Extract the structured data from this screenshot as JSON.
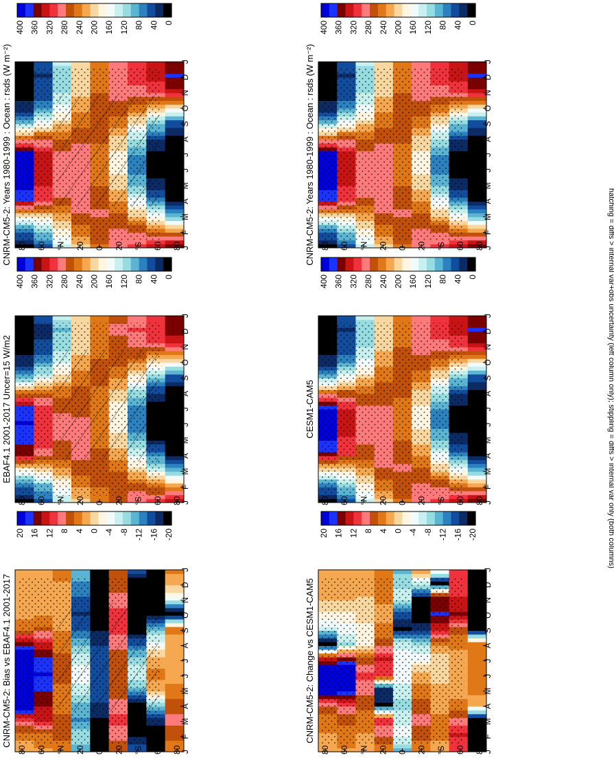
{
  "figure": {
    "footnote": "hatching = diffs > internal var+obs uncertainty (left column only); stippling = diffs > internal var only (both columns)",
    "months": [
      "J",
      "F",
      "M",
      "A",
      "M",
      "J",
      "J",
      "A",
      "S",
      "O",
      "N",
      "D",
      "J"
    ],
    "lat_labels": [
      "80",
      "60",
      "°N",
      "20",
      "0",
      "20",
      "°S",
      "60",
      "80"
    ]
  },
  "colorbars": {
    "absolute": {
      "ticks": [
        "400",
        "360",
        "320",
        "280",
        "240",
        "200",
        "160",
        "120",
        "80",
        "40",
        "0"
      ],
      "colors": [
        "#0000d8",
        "#1a33ff",
        "#7a0000",
        "#c81414",
        "#f0323c",
        "#ff7a7a",
        "#c0500a",
        "#e07818",
        "#f5a850",
        "#f8d8a0",
        "#fff5e0",
        "#f2fbfb",
        "#c8f0ee",
        "#96dce0",
        "#5ab4d2",
        "#2c82be",
        "#124c9c",
        "#0c2a64",
        "#000000"
      ]
    },
    "difference": {
      "ticks": [
        "20",
        "16",
        "12",
        "8",
        "4",
        "0",
        "-4",
        "-8",
        "-12",
        "-16",
        "-20"
      ],
      "colors": [
        "#0000d8",
        "#1a33ff",
        "#7a0000",
        "#c81414",
        "#f0323c",
        "#ff7a7a",
        "#c0500a",
        "#e07818",
        "#f5a850",
        "#f8d8a0",
        "#fff5e0",
        "#f2fbfb",
        "#c8f0ee",
        "#96dce0",
        "#5ab4d2",
        "#2c82be",
        "#124c9c",
        "#0c2a64",
        "#000000"
      ]
    }
  },
  "panels": [
    {
      "id": "row1-left",
      "title": "CNRM-CM5-2: Years 1980-1999 : Ocean : rsds (W m⁻²)",
      "kind": "absolute",
      "hatch": true
    },
    {
      "id": "row1-right",
      "title": "CNRM-CM5-2: Years 1980-1999 : Ocean : rsds (W m⁻²)",
      "kind": "absolute",
      "hatch": false
    },
    {
      "id": "row2-left",
      "title": "EBAF4.1 2001-2017 Uncer=15 W/m2",
      "kind": "absolute",
      "hatch": true
    },
    {
      "id": "row2-right",
      "title": "CESM1-CAM5",
      "kind": "absolute",
      "hatch": false
    },
    {
      "id": "row3-left",
      "title": "CNRM-CM5-2: Bias vs EBAF4.1 2001-2017",
      "kind": "difference",
      "hatch": true
    },
    {
      "id": "row3-right",
      "title": "CNRM-CM5-2: Change vs CESM1-CAM5",
      "kind": "difference",
      "hatch": false
    }
  ],
  "chart_data": [
    {
      "type": "heatmap",
      "title": "CNRM-CM5-2: Years 1980-1999 : Ocean : rsds (W m⁻²)",
      "x": [
        "J",
        "F",
        "M",
        "A",
        "M",
        "J",
        "J",
        "A",
        "S",
        "O",
        "N",
        "D",
        "J"
      ],
      "y": [
        "80N",
        "60N",
        "40N",
        "20N",
        "0",
        "20S",
        "40S",
        "60S",
        "80S"
      ],
      "zlim": [
        0,
        400
      ],
      "values": [
        [
          20,
          70,
          190,
          360,
          390,
          400,
          380,
          250,
          90,
          25,
          10,
          10,
          20
        ],
        [
          60,
          110,
          210,
          300,
          320,
          330,
          320,
          260,
          150,
          75,
          50,
          40,
          60
        ],
        [
          140,
          180,
          230,
          270,
          285,
          290,
          280,
          250,
          200,
          150,
          120,
          110,
          140
        ],
        [
          210,
          240,
          270,
          290,
          290,
          285,
          280,
          270,
          245,
          220,
          205,
          200,
          210
        ],
        [
          250,
          265,
          275,
          270,
          250,
          240,
          245,
          260,
          270,
          265,
          250,
          245,
          250
        ],
        [
          280,
          275,
          260,
          230,
          200,
          180,
          185,
          210,
          245,
          270,
          280,
          285,
          280
        ],
        [
          300,
          270,
          210,
          150,
          100,
          75,
          85,
          130,
          190,
          250,
          290,
          305,
          300
        ],
        [
          320,
          250,
          150,
          70,
          25,
          10,
          15,
          50,
          120,
          220,
          300,
          330,
          320
        ],
        [
          350,
          230,
          90,
          20,
          0,
          0,
          0,
          10,
          60,
          200,
          330,
          360,
          350
        ]
      ]
    },
    {
      "type": "heatmap",
      "title": "CNRM-CM5-2: Years 1980-1999 : Ocean : rsds (W m⁻²)",
      "x": [
        "J",
        "F",
        "M",
        "A",
        "M",
        "J",
        "J",
        "A",
        "S",
        "O",
        "N",
        "D",
        "J"
      ],
      "y": [
        "80N",
        "60N",
        "40N",
        "20N",
        "0",
        "20S",
        "40S",
        "60S",
        "80S"
      ],
      "zlim": [
        0,
        400
      ],
      "values": [
        [
          20,
          70,
          190,
          360,
          390,
          400,
          380,
          250,
          90,
          25,
          10,
          10,
          20
        ],
        [
          60,
          110,
          210,
          300,
          320,
          330,
          320,
          260,
          150,
          75,
          50,
          40,
          60
        ],
        [
          140,
          180,
          230,
          270,
          285,
          290,
          280,
          250,
          200,
          150,
          120,
          110,
          140
        ],
        [
          210,
          240,
          270,
          290,
          290,
          285,
          280,
          270,
          245,
          220,
          205,
          200,
          210
        ],
        [
          250,
          265,
          275,
          270,
          250,
          240,
          245,
          260,
          270,
          265,
          250,
          245,
          250
        ],
        [
          280,
          275,
          260,
          230,
          200,
          180,
          185,
          210,
          245,
          270,
          280,
          285,
          280
        ],
        [
          300,
          270,
          210,
          150,
          100,
          75,
          85,
          130,
          190,
          250,
          290,
          305,
          300
        ],
        [
          320,
          250,
          150,
          70,
          25,
          10,
          15,
          50,
          120,
          220,
          300,
          330,
          320
        ],
        [
          350,
          230,
          90,
          20,
          0,
          0,
          0,
          10,
          60,
          200,
          330,
          360,
          350
        ]
      ]
    },
    {
      "type": "heatmap",
      "title": "EBAF4.1 2001-2017 Uncer=15 W/m2",
      "x": [
        "J",
        "F",
        "M",
        "A",
        "M",
        "J",
        "J",
        "A",
        "S",
        "O",
        "N",
        "D",
        "J"
      ],
      "y": [
        "80N",
        "60N",
        "40N",
        "20N",
        "0",
        "20S",
        "40S",
        "60S",
        "80S"
      ],
      "zlim": [
        0,
        400
      ],
      "values": [
        [
          20,
          65,
          180,
          340,
          370,
          380,
          360,
          240,
          85,
          25,
          10,
          10,
          20
        ],
        [
          55,
          105,
          200,
          285,
          305,
          315,
          305,
          250,
          145,
          70,
          45,
          35,
          55
        ],
        [
          135,
          175,
          225,
          265,
          275,
          280,
          270,
          245,
          195,
          145,
          115,
          105,
          135
        ],
        [
          205,
          235,
          265,
          280,
          280,
          275,
          270,
          260,
          240,
          215,
          200,
          195,
          205
        ],
        [
          240,
          255,
          265,
          260,
          245,
          235,
          240,
          250,
          260,
          255,
          245,
          240,
          240
        ],
        [
          270,
          265,
          250,
          225,
          195,
          175,
          180,
          205,
          240,
          260,
          270,
          275,
          270
        ],
        [
          290,
          260,
          200,
          145,
          95,
          70,
          80,
          125,
          185,
          245,
          280,
          295,
          290
        ],
        [
          305,
          240,
          145,
          65,
          20,
          8,
          12,
          45,
          115,
          210,
          290,
          315,
          305
        ],
        [
          335,
          220,
          85,
          18,
          0,
          0,
          0,
          8,
          55,
          190,
          315,
          345,
          335
        ]
      ]
    },
    {
      "type": "heatmap",
      "title": "CESM1-CAM5",
      "x": [
        "J",
        "F",
        "M",
        "A",
        "M",
        "J",
        "J",
        "A",
        "S",
        "O",
        "N",
        "D",
        "J"
      ],
      "y": [
        "80N",
        "60N",
        "40N",
        "20N",
        "0",
        "20S",
        "40S",
        "60S",
        "80S"
      ],
      "zlim": [
        0,
        400
      ],
      "values": [
        [
          20,
          70,
          190,
          350,
          385,
          395,
          375,
          245,
          90,
          25,
          10,
          10,
          20
        ],
        [
          60,
          110,
          205,
          295,
          315,
          325,
          315,
          255,
          150,
          75,
          50,
          40,
          60
        ],
        [
          140,
          180,
          230,
          265,
          280,
          285,
          275,
          250,
          200,
          150,
          120,
          110,
          140
        ],
        [
          210,
          240,
          270,
          285,
          285,
          280,
          275,
          265,
          245,
          220,
          205,
          200,
          210
        ],
        [
          250,
          265,
          275,
          270,
          250,
          240,
          245,
          260,
          270,
          265,
          250,
          245,
          250
        ],
        [
          280,
          275,
          260,
          230,
          200,
          180,
          185,
          210,
          245,
          270,
          280,
          285,
          280
        ],
        [
          300,
          270,
          210,
          150,
          100,
          75,
          85,
          130,
          190,
          250,
          290,
          305,
          300
        ],
        [
          320,
          250,
          150,
          70,
          25,
          10,
          15,
          50,
          120,
          220,
          300,
          330,
          320
        ],
        [
          350,
          230,
          90,
          20,
          0,
          0,
          0,
          10,
          60,
          200,
          330,
          360,
          350
        ]
      ]
    },
    {
      "type": "heatmap",
      "title": "CNRM-CM5-2: Bias vs EBAF4.1 2001-2017",
      "x": [
        "J",
        "F",
        "M",
        "A",
        "M",
        "J",
        "J",
        "A",
        "S",
        "O",
        "N",
        "D",
        "J"
      ],
      "y": [
        "80N",
        "60N",
        "40N",
        "20N",
        "0",
        "20S",
        "40S",
        "60S",
        "80S"
      ],
      "zlim": [
        -20,
        20
      ],
      "values": [
        [
          2,
          4,
          10,
          22,
          24,
          24,
          22,
          14,
          5,
          2,
          2,
          2,
          2
        ],
        [
          3,
          5,
          12,
          14,
          16,
          18,
          16,
          12,
          6,
          3,
          2,
          2,
          3
        ],
        [
          4,
          6,
          6,
          4,
          5,
          6,
          6,
          4,
          3,
          3,
          3,
          3,
          4
        ],
        [
          -10,
          -8,
          -12,
          -10,
          -6,
          -4,
          -6,
          -10,
          -14,
          -16,
          -14,
          -12,
          -10
        ],
        [
          -22,
          -20,
          -18,
          -16,
          -14,
          -14,
          -14,
          -16,
          -18,
          -20,
          -22,
          -22,
          -22
        ],
        [
          6,
          8,
          10,
          8,
          6,
          6,
          6,
          8,
          10,
          10,
          8,
          6,
          6
        ],
        [
          -14,
          -18,
          -22,
          -20,
          -10,
          -6,
          -8,
          -14,
          -20,
          -22,
          -22,
          -20,
          -14
        ],
        [
          -18,
          -22,
          -16,
          -8,
          2,
          4,
          2,
          -4,
          -10,
          -18,
          -22,
          -20,
          -18
        ],
        [
          4,
          6,
          8,
          6,
          4,
          2,
          2,
          2,
          4,
          -20,
          -4,
          2,
          4
        ]
      ]
    },
    {
      "type": "heatmap",
      "title": "CNRM-CM5-2: Change vs CESM1-CAM5",
      "x": [
        "J",
        "F",
        "M",
        "A",
        "M",
        "J",
        "J",
        "A",
        "S",
        "O",
        "N",
        "D",
        "J"
      ],
      "y": [
        "80N",
        "60N",
        "40N",
        "20N",
        "0",
        "20S",
        "40S",
        "60S",
        "80S"
      ],
      "zlim": [
        -20,
        20
      ],
      "values": [
        [
          2,
          3,
          4,
          8,
          22,
          24,
          12,
          -20,
          -6,
          -2,
          2,
          2,
          2
        ],
        [
          3,
          4,
          6,
          10,
          18,
          22,
          14,
          -8,
          -4,
          -2,
          2,
          3,
          3
        ],
        [
          2,
          3,
          4,
          6,
          8,
          10,
          6,
          -2,
          -2,
          0,
          1,
          2,
          2
        ],
        [
          4,
          8,
          10,
          -18,
          -16,
          10,
          12,
          6,
          4,
          2,
          4,
          4,
          4
        ],
        [
          -10,
          -4,
          -6,
          -8,
          -6,
          -4,
          -4,
          -6,
          -18,
          -14,
          -6,
          -8,
          -10
        ],
        [
          4,
          6,
          8,
          6,
          4,
          2,
          -4,
          -8,
          -16,
          -20,
          -18,
          -6,
          4
        ],
        [
          2,
          4,
          4,
          2,
          2,
          0,
          0,
          4,
          12,
          16,
          14,
          -20,
          2
        ],
        [
          10,
          12,
          8,
          4,
          2,
          2,
          2,
          4,
          6,
          14,
          12,
          10,
          10
        ],
        [
          -20,
          -20,
          -20,
          2,
          4,
          4,
          4,
          4,
          -20,
          -20,
          -20,
          -20,
          -20
        ]
      ]
    }
  ]
}
